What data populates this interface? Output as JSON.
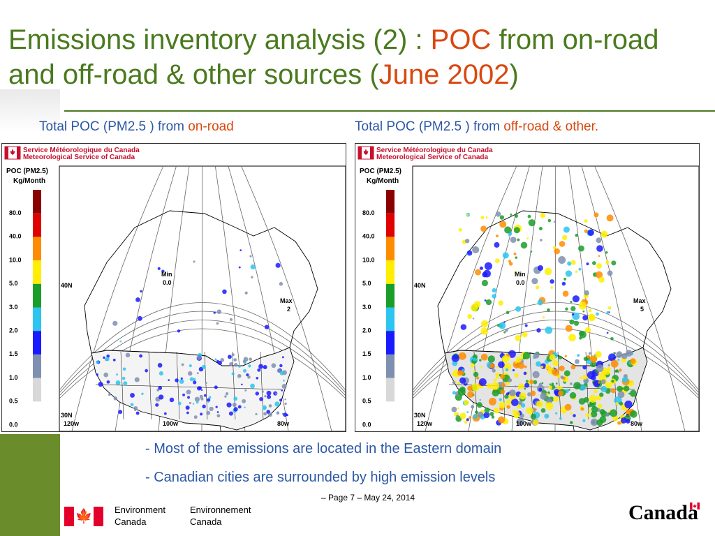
{
  "slide": {
    "title_pre": "Emissions inventory analysis (2) : ",
    "title_poc": "POC",
    "title_mid": " from on-road and off-road & other sources (",
    "title_date": "June 2002",
    "title_end": ")"
  },
  "left_panel": {
    "caption_pre": "Total POC (PM2.5 ) from ",
    "caption_accent": "on-road"
  },
  "right_panel": {
    "caption_pre": "Total POC (PM2.5 ) from ",
    "caption_accent": "off-road & other."
  },
  "map_common": {
    "agency_fr": "Service Météorologique du Canada",
    "agency_en": "Meteorological Service of Canada",
    "legend_title_1": "POC (PM2.5)",
    "legend_title_2": "Kg/Month",
    "legend_ticks": [
      "80.0",
      "40.0",
      "10.0",
      "5.0",
      "3.0",
      "2.0",
      "1.5",
      "1.0",
      "0.5",
      "0.0"
    ],
    "legend_colors": [
      "#8b0000",
      "#e00000",
      "#ff8c00",
      "#ffee00",
      "#1a9e2a",
      "#2cc4f0",
      "#1a1aff",
      "#7f8fb0",
      "#d8d8d8"
    ],
    "min_label": "Min",
    "lon_labels": [
      "120w",
      "100w",
      "80w"
    ],
    "lat_labels": [
      "30N",
      "40N"
    ]
  },
  "left_map": {
    "min_value": "0.0",
    "max_label": "Max",
    "max_value": "2"
  },
  "right_map": {
    "min_value": "0.0",
    "max_label": "Max",
    "max_value": "5"
  },
  "bullets": [
    "- Most of the emissions are located in the Eastern domain",
    "- Canadian cities are surrounded by high emission levels"
  ],
  "footer": {
    "page_info": "– Page 7 – May 24, 2014",
    "dept_en_1": "Environment",
    "dept_en_2": "Canada",
    "dept_fr_1": "Environnement",
    "dept_fr_2": "Canada",
    "wordmark": "Canada"
  }
}
